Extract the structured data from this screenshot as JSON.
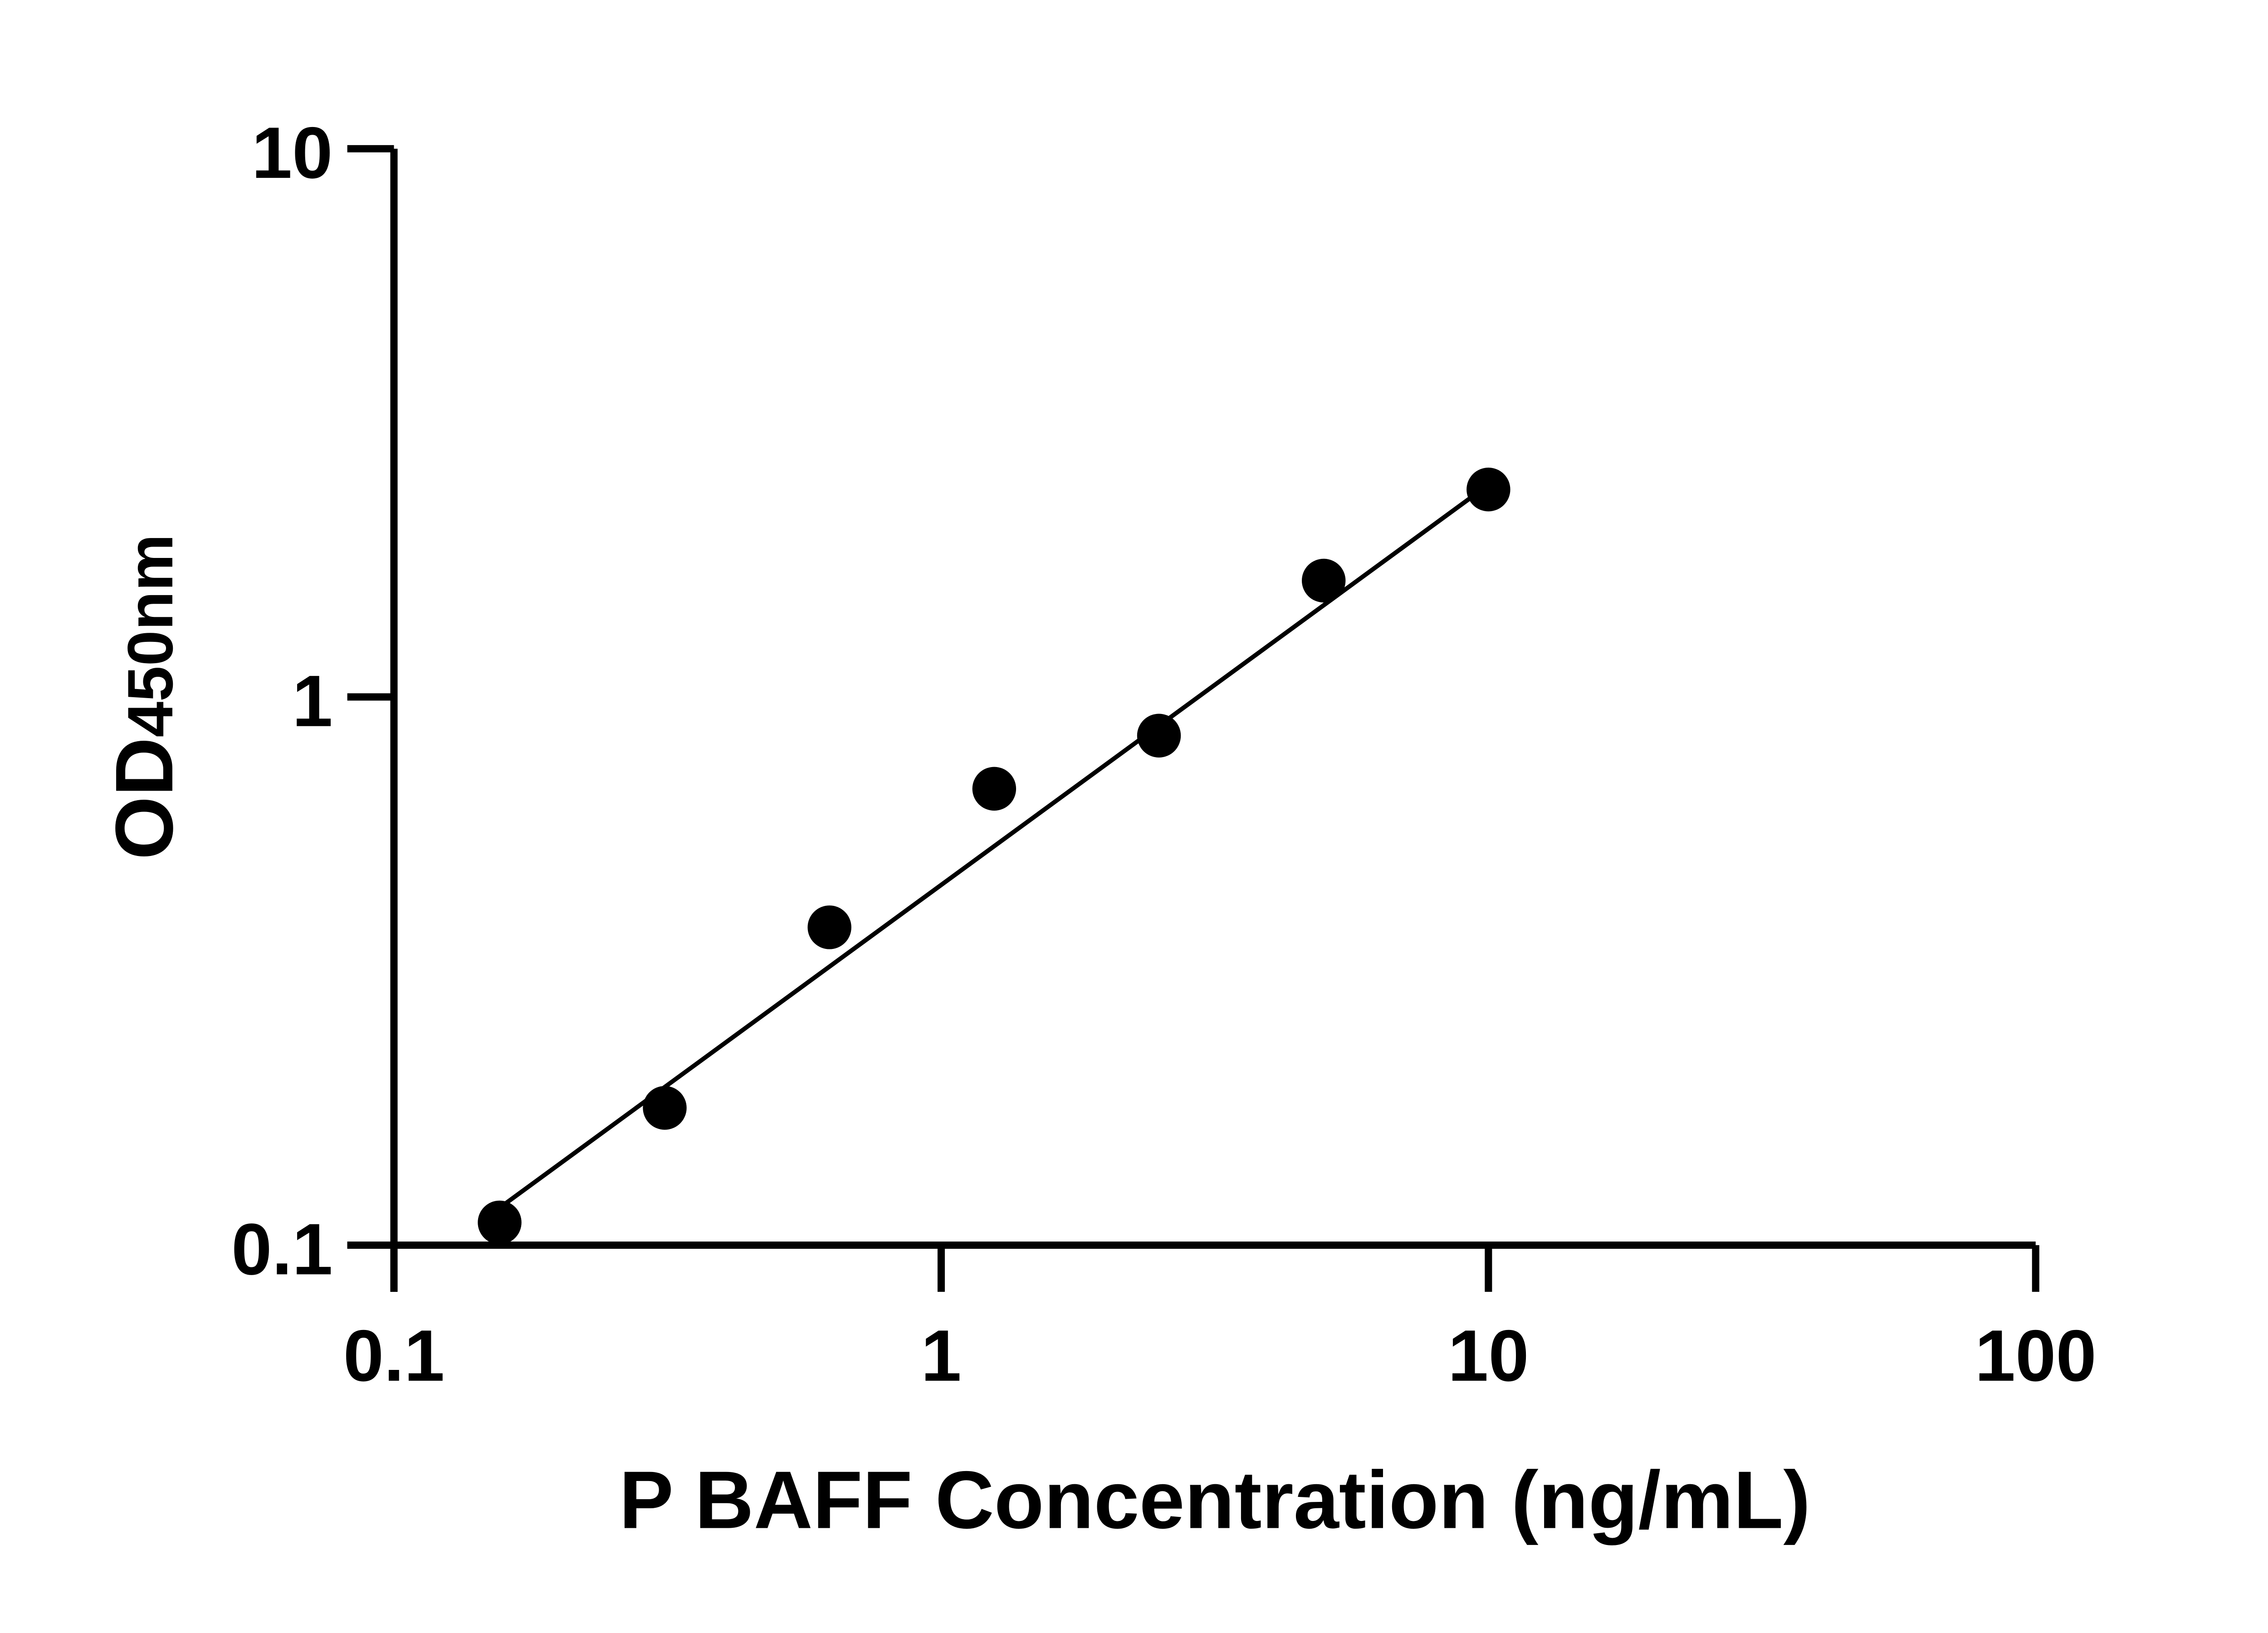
{
  "chart_data": {
    "type": "scatter",
    "title": "",
    "xlabel": "P BAFF Concentration (ng/mL)",
    "ylabel": {
      "main": "OD",
      "sub": "450nm"
    },
    "x_scale": "log",
    "y_scale": "log",
    "xlim": [
      0.1,
      100
    ],
    "ylim": [
      0.1,
      10
    ],
    "x_ticks": [
      "0.1",
      "1",
      "10",
      "100"
    ],
    "y_ticks": [
      "0.1",
      "1",
      "10"
    ],
    "grid": false,
    "legend": "none",
    "colors": {
      "points": "#000000",
      "line": "#000000",
      "axes": "#000000"
    },
    "series": [
      {
        "x": [
          0.156,
          0.3125,
          0.625,
          1.25,
          2.5,
          5,
          10
        ],
        "y": [
          0.11,
          0.178,
          0.38,
          0.68,
          0.85,
          1.63,
          2.39
        ]
      }
    ],
    "fit_line": {
      "x": [
        0.156,
        9.4
      ],
      "y": [
        0.117,
        2.33
      ]
    }
  }
}
